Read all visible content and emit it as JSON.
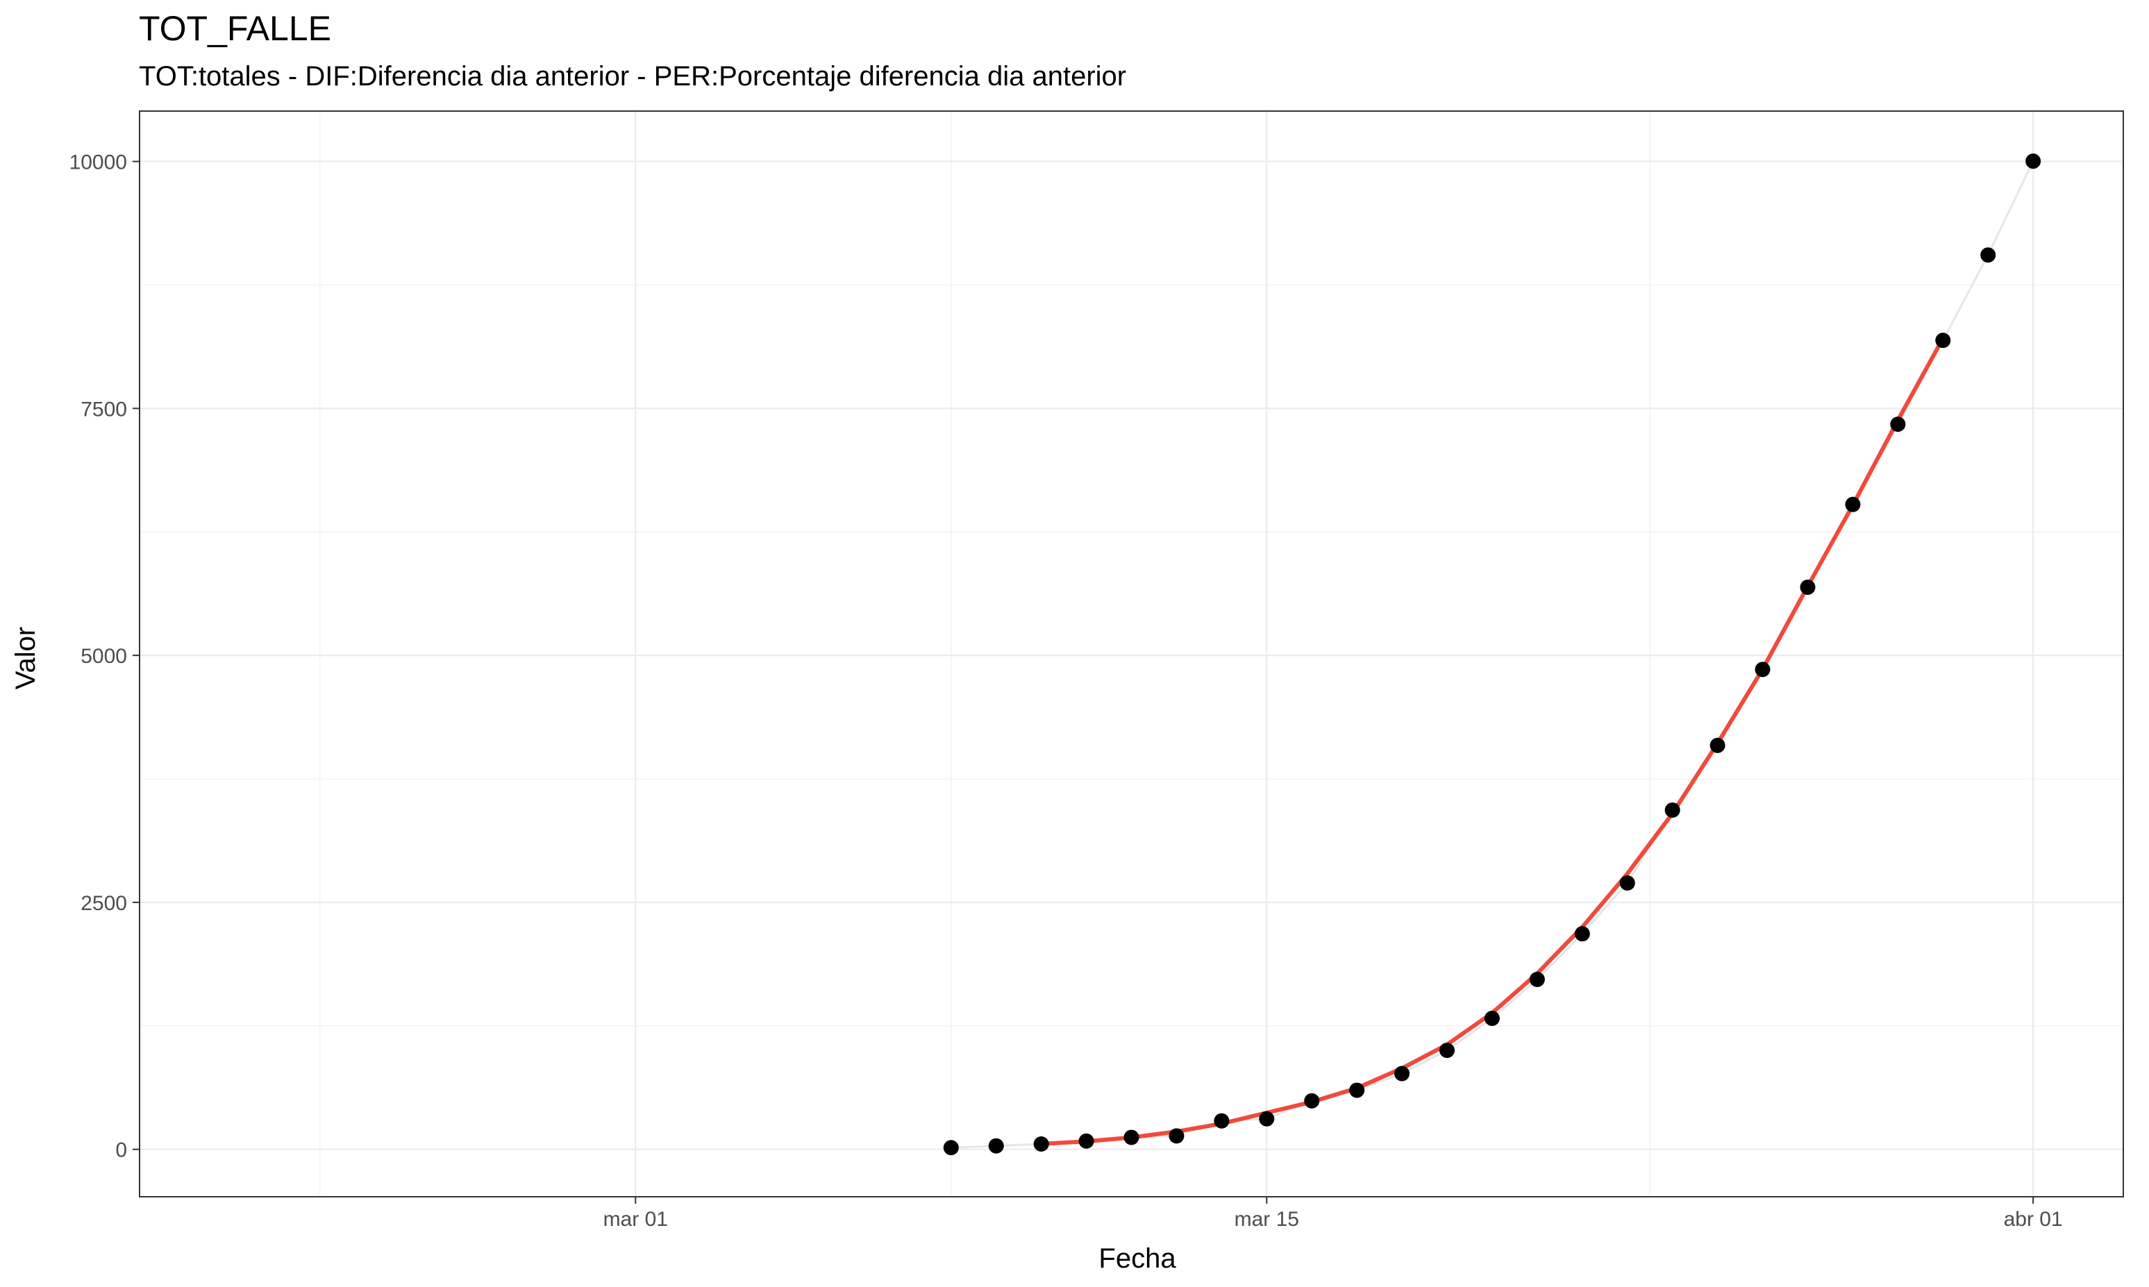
{
  "title": "TOT_FALLE",
  "subtitle": "TOT:totales - DIF:Diferencia dia anterior - PER:Porcentaje diferencia dia anterior",
  "chart_data": {
    "type": "scatter",
    "title": "TOT_FALLE",
    "subtitle": "TOT:totales - DIF:Diferencia dia anterior - PER:Porcentaje diferencia dia anterior",
    "xlabel": "Fecha",
    "ylabel": "Valor",
    "x_ticks": [
      "2020-03-01",
      "2020-03-15",
      "2020-04-01"
    ],
    "x_tick_labels": [
      "mar 01",
      "mar 15",
      "abr 01"
    ],
    "y_ticks": [
      0,
      2500,
      5000,
      7500,
      10000
    ],
    "xlim": [
      "2020-02-19",
      "2020-04-03"
    ],
    "ylim": [
      -480,
      10510
    ],
    "grid": true,
    "series": [
      {
        "type": "points",
        "color": "#000000",
        "x": [
          "2020-03-08",
          "2020-03-09",
          "2020-03-10",
          "2020-03-11",
          "2020-03-12",
          "2020-03-13",
          "2020-03-14",
          "2020-03-15",
          "2020-03-16",
          "2020-03-17",
          "2020-03-18",
          "2020-03-19",
          "2020-03-20",
          "2020-03-21",
          "2020-03-22",
          "2020-03-23",
          "2020-03-24",
          "2020-03-25",
          "2020-03-26",
          "2020-03-27",
          "2020-03-28",
          "2020-03-29",
          "2020-03-30",
          "2020-03-31",
          "2020-04-01"
        ],
        "y": [
          17,
          35,
          54,
          84,
          121,
          136,
          288,
          309,
          491,
          598,
          767,
          1002,
          1326,
          1720,
          2182,
          2696,
          3434,
          4089,
          4858,
          5690,
          6528,
          7340,
          8189,
          9053,
          10003
        ]
      },
      {
        "type": "connecting-line",
        "color": "#e6e6e6",
        "x": [
          "2020-03-08",
          "2020-03-09",
          "2020-03-10",
          "2020-03-11",
          "2020-03-12",
          "2020-03-13",
          "2020-03-14",
          "2020-03-15",
          "2020-03-16",
          "2020-03-17",
          "2020-03-18",
          "2020-03-19",
          "2020-03-20",
          "2020-03-21",
          "2020-03-22",
          "2020-03-23",
          "2020-03-24",
          "2020-03-25",
          "2020-03-26",
          "2020-03-27",
          "2020-03-28",
          "2020-03-29",
          "2020-03-30",
          "2020-03-31",
          "2020-04-01"
        ],
        "y": [
          17,
          35,
          54,
          84,
          121,
          136,
          288,
          309,
          491,
          598,
          767,
          1002,
          1326,
          1720,
          2182,
          2696,
          3434,
          4089,
          4858,
          5690,
          6528,
          7340,
          8189,
          9053,
          10003
        ]
      },
      {
        "type": "smooth-line",
        "color": "#f04a3c",
        "x": [
          "2020-03-10",
          "2020-03-11",
          "2020-03-12",
          "2020-03-13",
          "2020-03-14",
          "2020-03-15",
          "2020-03-16",
          "2020-03-17",
          "2020-03-18",
          "2020-03-19",
          "2020-03-20",
          "2020-03-21",
          "2020-03-22",
          "2020-03-23",
          "2020-03-24",
          "2020-03-25",
          "2020-03-26",
          "2020-03-27",
          "2020-03-28",
          "2020-03-29",
          "2020-03-30"
        ],
        "y": [
          55,
          80,
          120,
          180,
          260,
          370,
          480,
          620,
          820,
          1060,
          1380,
          1780,
          2250,
          2790,
          3400,
          4110,
          4860,
          5700,
          6520,
          7380,
          8210
        ]
      }
    ]
  }
}
